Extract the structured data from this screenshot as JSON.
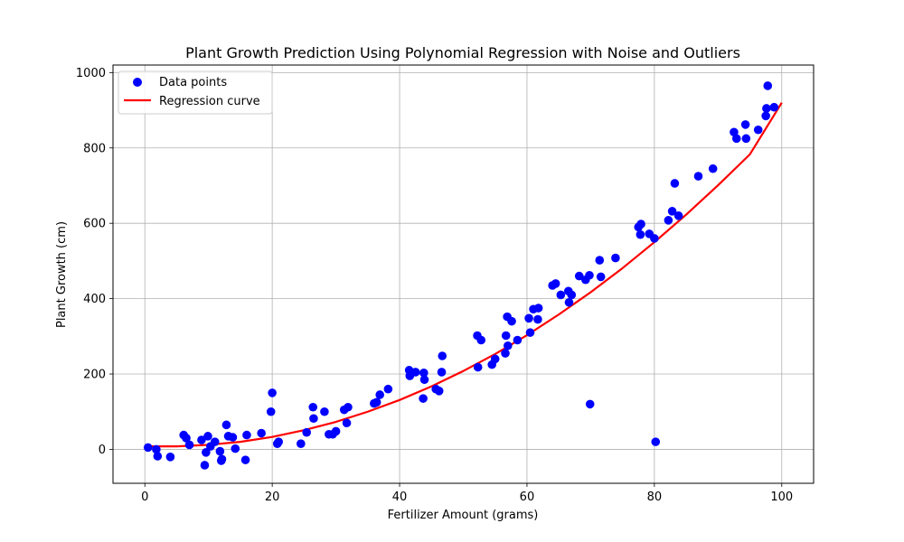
{
  "chart_data": {
    "type": "scatter",
    "title": "Plant Growth Prediction Using Polynomial Regression with Noise and Outliers",
    "xlabel": "Fertilizer Amount (grams)",
    "ylabel": "Plant Growth (cm)",
    "xlim": [
      -5,
      105
    ],
    "ylim": [
      -90,
      1020
    ],
    "xticks": [
      0,
      20,
      40,
      60,
      80,
      100
    ],
    "yticks": [
      0,
      200,
      400,
      600,
      800,
      1000
    ],
    "grid": true,
    "legend_position": "top-left",
    "colors": {
      "points": "#0000ff",
      "curve": "#ff0000"
    },
    "series": [
      {
        "name": "Data points",
        "kind": "scatter",
        "points": [
          [
            0.5,
            5
          ],
          [
            1.8,
            0
          ],
          [
            2.0,
            -18
          ],
          [
            4.0,
            -20
          ],
          [
            6.1,
            38
          ],
          [
            6.5,
            30
          ],
          [
            7.0,
            12
          ],
          [
            8.9,
            25
          ],
          [
            9.4,
            -42
          ],
          [
            9.6,
            -8
          ],
          [
            9.9,
            35
          ],
          [
            10.3,
            8
          ],
          [
            11.0,
            20
          ],
          [
            11.8,
            -5
          ],
          [
            12.0,
            -30
          ],
          [
            12.1,
            -26
          ],
          [
            12.8,
            65
          ],
          [
            13.1,
            35
          ],
          [
            13.8,
            32
          ],
          [
            14.2,
            2
          ],
          [
            15.8,
            -28
          ],
          [
            16.0,
            38
          ],
          [
            18.3,
            43
          ],
          [
            19.8,
            100
          ],
          [
            20.0,
            150
          ],
          [
            20.8,
            15
          ],
          [
            21.0,
            20
          ],
          [
            24.5,
            15
          ],
          [
            25.4,
            45
          ],
          [
            26.4,
            112
          ],
          [
            26.5,
            82
          ],
          [
            28.2,
            100
          ],
          [
            28.9,
            40
          ],
          [
            29.5,
            40
          ],
          [
            30.0,
            48
          ],
          [
            31.3,
            105
          ],
          [
            31.7,
            70
          ],
          [
            31.9,
            112
          ],
          [
            36.0,
            122
          ],
          [
            36.4,
            125
          ],
          [
            36.9,
            145
          ],
          [
            38.2,
            160
          ],
          [
            41.5,
            210
          ],
          [
            41.6,
            195
          ],
          [
            42.5,
            205
          ],
          [
            43.7,
            135
          ],
          [
            43.8,
            203
          ],
          [
            43.9,
            185
          ],
          [
            45.7,
            160
          ],
          [
            46.2,
            155
          ],
          [
            46.6,
            205
          ],
          [
            46.7,
            248
          ],
          [
            52.2,
            302
          ],
          [
            52.3,
            218
          ],
          [
            52.8,
            290
          ],
          [
            54.5,
            225
          ],
          [
            55.0,
            240
          ],
          [
            56.6,
            255
          ],
          [
            56.7,
            302
          ],
          [
            56.9,
            352
          ],
          [
            57.0,
            275
          ],
          [
            57.6,
            340
          ],
          [
            58.5,
            290
          ],
          [
            60.3,
            348
          ],
          [
            60.5,
            310
          ],
          [
            61.0,
            372
          ],
          [
            61.7,
            345
          ],
          [
            61.8,
            375
          ],
          [
            64.0,
            435
          ],
          [
            64.5,
            440
          ],
          [
            65.3,
            410
          ],
          [
            66.5,
            420
          ],
          [
            66.6,
            390
          ],
          [
            67.0,
            410
          ],
          [
            68.2,
            460
          ],
          [
            69.2,
            450
          ],
          [
            69.8,
            462
          ],
          [
            69.9,
            120
          ],
          [
            71.4,
            502
          ],
          [
            71.6,
            458
          ],
          [
            73.9,
            508
          ],
          [
            77.5,
            590
          ],
          [
            77.8,
            570
          ],
          [
            77.9,
            598
          ],
          [
            79.2,
            572
          ],
          [
            80.0,
            560
          ],
          [
            80.2,
            20
          ],
          [
            82.2,
            608
          ],
          [
            82.8,
            632
          ],
          [
            83.2,
            706
          ],
          [
            83.8,
            620
          ],
          [
            86.9,
            725
          ],
          [
            89.2,
            745
          ],
          [
            92.5,
            842
          ],
          [
            92.9,
            825
          ],
          [
            94.3,
            862
          ],
          [
            94.4,
            825
          ],
          [
            96.3,
            848
          ],
          [
            97.5,
            885
          ],
          [
            97.6,
            905
          ],
          [
            97.8,
            965
          ],
          [
            98.8,
            908
          ]
        ]
      },
      {
        "name": "Regression curve",
        "kind": "line",
        "x": [
          0,
          5,
          10,
          15,
          20,
          25,
          30,
          35,
          40,
          45,
          50,
          55,
          60,
          65,
          70,
          75,
          80,
          85,
          90,
          95,
          100
        ],
        "y": [
          8,
          8,
          12,
          20,
          33,
          51,
          73,
          100,
          131,
          167,
          208,
          253,
          303,
          358,
          417,
          481,
          550,
          623,
          701,
          783,
          920
        ]
      }
    ]
  }
}
